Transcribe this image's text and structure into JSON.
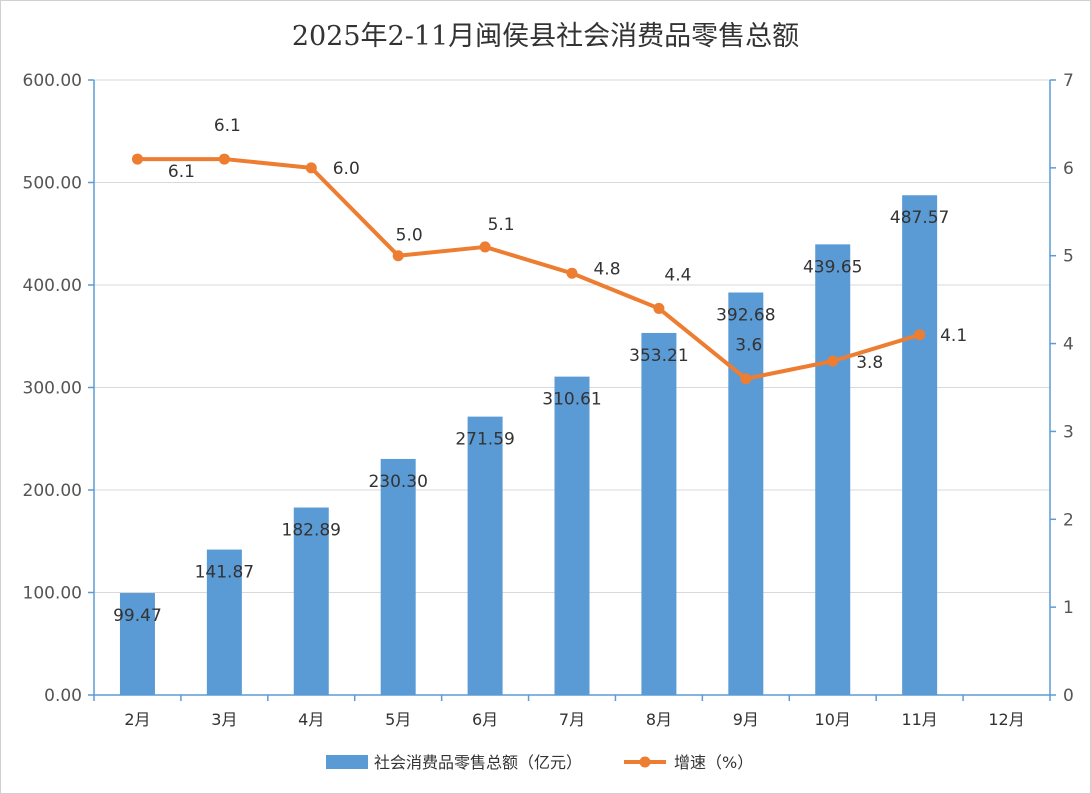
{
  "chart_data": {
    "type": "bar",
    "title": "2025年2-11月闽侯县社会消费品零售总额",
    "categories": [
      "2月",
      "3月",
      "4月",
      "5月",
      "6月",
      "7月",
      "8月",
      "9月",
      "10月",
      "11月",
      "12月"
    ],
    "series": [
      {
        "name": "社会消费品零售总额（亿元）",
        "type": "bar",
        "axis": "left",
        "color": "#5b9bd5",
        "values": [
          99.47,
          141.87,
          182.89,
          230.3,
          271.59,
          310.61,
          353.21,
          392.68,
          439.65,
          487.57,
          null
        ],
        "labels": [
          "99.47",
          "141.87",
          "182.89",
          "230.30",
          "271.59",
          "310.61",
          "353.21",
          "392.68",
          "439.65",
          "487.57",
          ""
        ]
      },
      {
        "name": "增速（%）",
        "type": "line",
        "axis": "right",
        "color": "#ed7d31",
        "values": [
          6.1,
          6.1,
          6.0,
          5.0,
          5.1,
          4.8,
          4.4,
          3.6,
          3.8,
          4.1,
          null
        ],
        "labels": [
          "6.1",
          "6.1",
          "6.0",
          "5.0",
          "5.1",
          "4.8",
          "4.4",
          "3.6",
          "3.8",
          "4.1",
          ""
        ]
      }
    ],
    "y_left": {
      "range": [
        0,
        600
      ],
      "ticks": [
        "0.00",
        "100.00",
        "200.00",
        "300.00",
        "400.00",
        "500.00",
        "600.00"
      ]
    },
    "y_right": {
      "range": [
        0,
        7
      ],
      "ticks": [
        "0",
        "1",
        "2",
        "3",
        "4",
        "5",
        "6",
        "7"
      ]
    },
    "grid": true,
    "legend_position": "bottom"
  }
}
